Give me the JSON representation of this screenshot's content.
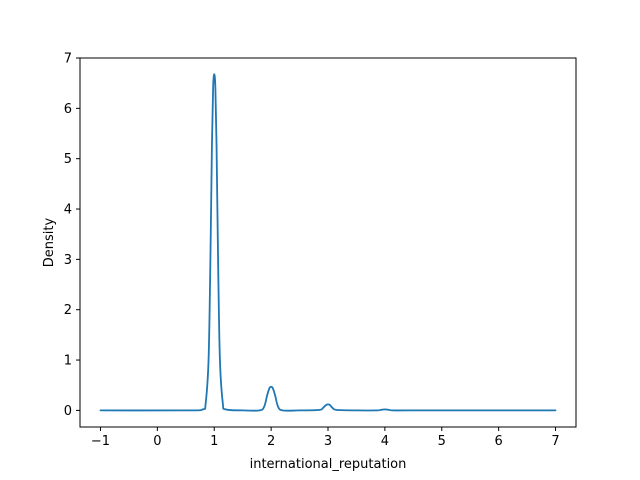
{
  "chart_data": {
    "type": "line",
    "title": "",
    "xlabel": "international_reputation",
    "ylabel": "Density",
    "xlim": [
      -1.36,
      7.36
    ],
    "ylim": [
      -0.33,
      7.0
    ],
    "xticks": [
      -1,
      0,
      1,
      2,
      3,
      4,
      5,
      6,
      7
    ],
    "yticks": [
      0,
      1,
      2,
      3,
      4,
      5,
      6,
      7
    ],
    "grid": false,
    "series": [
      {
        "color": "#1f77b4",
        "x": [
          -1.0,
          0.5,
          0.8,
          0.85,
          0.9,
          0.93,
          0.96,
          0.98,
          1.0,
          1.02,
          1.04,
          1.07,
          1.1,
          1.15,
          1.2,
          1.5,
          1.8,
          1.88,
          1.93,
          1.97,
          2.0,
          2.03,
          2.07,
          2.12,
          2.2,
          2.5,
          2.85,
          2.92,
          2.97,
          3.0,
          3.03,
          3.08,
          3.15,
          3.5,
          3.85,
          3.93,
          4.0,
          4.07,
          4.15,
          4.5,
          7.0
        ],
        "y": [
          0.0,
          0.0,
          0.02,
          0.15,
          1.0,
          2.8,
          5.3,
          6.4,
          6.68,
          6.4,
          5.3,
          2.8,
          1.0,
          0.15,
          0.02,
          0.0,
          0.0,
          0.08,
          0.3,
          0.44,
          0.47,
          0.44,
          0.3,
          0.08,
          0.0,
          0.0,
          0.01,
          0.06,
          0.11,
          0.12,
          0.11,
          0.05,
          0.01,
          0.0,
          0.0,
          0.01,
          0.02,
          0.01,
          0.0,
          0.0,
          0.0
        ]
      }
    ]
  }
}
